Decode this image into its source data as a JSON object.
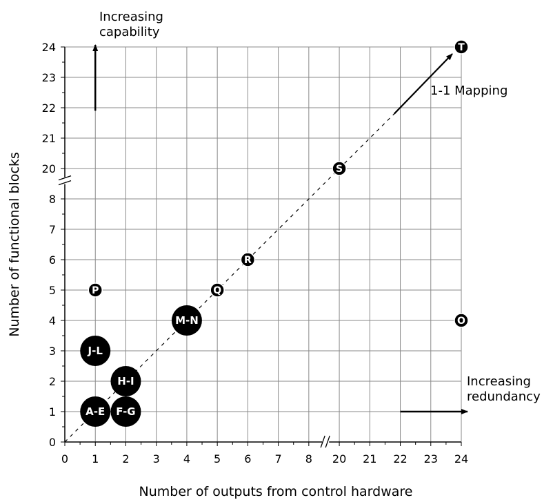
{
  "chart_data": {
    "type": "scatter",
    "title": "",
    "xlabel": "Number of outputs from control hardware",
    "ylabel": "Number of functional blocks",
    "x_ticks": [
      "0",
      "1",
      "2",
      "3",
      "4",
      "5",
      "6",
      "7",
      "8",
      "20",
      "21",
      "22",
      "23",
      "24"
    ],
    "y_ticks": [
      "0",
      "1",
      "2",
      "3",
      "4",
      "5",
      "6",
      "7",
      "8",
      "20",
      "21",
      "22",
      "23",
      "24"
    ],
    "x_axis_break": "between 8 and 20",
    "y_axis_break": "between 8 and 20",
    "grid": true,
    "points": [
      {
        "label": "A-E",
        "x": 1,
        "y": 1
      },
      {
        "label": "F-G",
        "x": 2,
        "y": 1
      },
      {
        "label": "H-I",
        "x": 2,
        "y": 2
      },
      {
        "label": "J-L",
        "x": 1,
        "y": 3
      },
      {
        "label": "M-N",
        "x": 4,
        "y": 4
      },
      {
        "label": "O",
        "x": 24,
        "y": 4
      },
      {
        "label": "P",
        "x": 1,
        "y": 5
      },
      {
        "label": "Q",
        "x": 5,
        "y": 5
      },
      {
        "label": "R",
        "x": 6,
        "y": 6
      },
      {
        "label": "S",
        "x": 20,
        "y": 20
      },
      {
        "label": "T",
        "x": 24,
        "y": 24
      }
    ],
    "reference_line": {
      "name": "1-1 Mapping",
      "style": "dashed",
      "from": [
        0,
        0
      ],
      "to": [
        24,
        24
      ]
    },
    "annotations": [
      {
        "text_lines": [
          "Increasing",
          "capability"
        ],
        "arrow": "up"
      },
      {
        "text_lines": [
          "Increasing",
          "redundancy"
        ],
        "arrow": "right"
      },
      {
        "text_lines": [
          "1-1 Mapping"
        ],
        "arrow": "up-right"
      }
    ]
  }
}
